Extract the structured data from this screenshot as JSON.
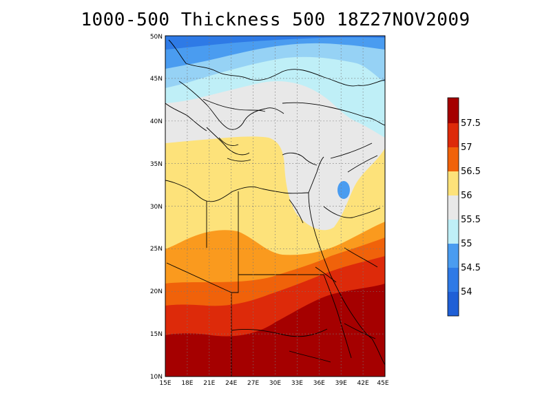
{
  "title": "1000-500 Thickness 500 18Z27NOV2009",
  "lon_ticks": [
    "15E",
    "18E",
    "21E",
    "24E",
    "27E",
    "30E",
    "33E",
    "36E",
    "39E",
    "42E",
    "45E"
  ],
  "lat_ticks": [
    "10N",
    "15N",
    "20N",
    "25N",
    "30N",
    "35N",
    "40N",
    "45N",
    "50N"
  ],
  "colorbar": {
    "labels": [
      "54",
      "54.5",
      "55",
      "55.5",
      "56",
      "56.5",
      "57",
      "57.5"
    ],
    "colors": [
      "#1f5fd6",
      "#2e7ae6",
      "#4a9cf0",
      "#96d2f5",
      "#bfeff7",
      "#e8e8e8",
      "#fde27a",
      "#fa9a1e",
      "#f0620a",
      "#dd2a0a",
      "#a50000"
    ]
  },
  "chart_data": {
    "type": "heatmap",
    "title": "1000-500 Thickness 500 18Z27NOV2009",
    "xlim": [
      15,
      45
    ],
    "ylim": [
      10,
      50
    ],
    "contour_levels": [
      54,
      54.5,
      55,
      55.5,
      56,
      56.5,
      57,
      57.5
    ]
  }
}
